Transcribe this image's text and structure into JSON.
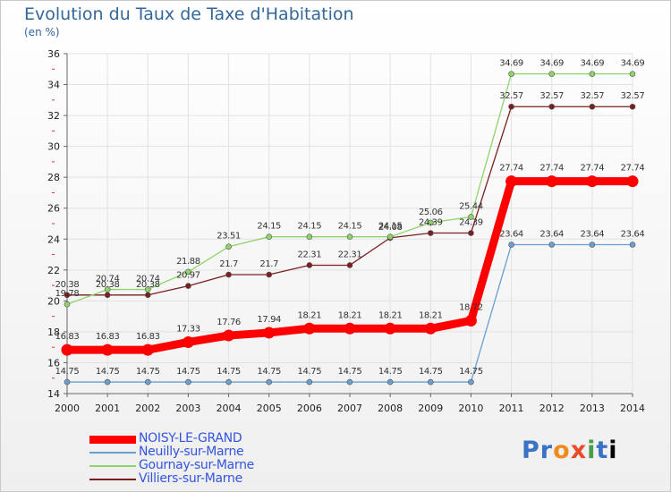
{
  "header": {
    "title": "Evolution du Taux de Taxe d'Habitation",
    "subtitle": "(en %)"
  },
  "logo": {
    "text": "Proxiti"
  },
  "chart_data": {
    "type": "line",
    "title": "Evolution du Taux de Taxe d'Habitation",
    "ylabel": "(en %)",
    "xlabel": "",
    "ylim": [
      14,
      36
    ],
    "ytick_step": 2,
    "grid": true,
    "legend_position": "bottom-left",
    "x": [
      "2000",
      "2001",
      "2002",
      "2003",
      "2004",
      "2005",
      "2006",
      "2007",
      "2008",
      "2009",
      "2010",
      "2011",
      "2012",
      "2013",
      "2014"
    ],
    "series": [
      {
        "name": "NOISY-LE-GRAND",
        "color": "#ff0000",
        "values": [
          16.83,
          16.83,
          16.83,
          17.33,
          17.76,
          17.94,
          18.21,
          18.21,
          18.21,
          18.21,
          18.72,
          27.74,
          27.74,
          27.74,
          27.74
        ],
        "labels": [
          "16.83",
          "16.83",
          "16.83",
          "17.33",
          "17.76",
          "17.94",
          "18.21",
          "18.21",
          "18.21",
          "18.21",
          "18.72",
          "27.74",
          "27.74",
          "27.74",
          "27.74"
        ]
      },
      {
        "name": "Neuilly-sur-Marne",
        "color": "#6a9fcf",
        "values": [
          14.75,
          14.75,
          14.75,
          14.75,
          14.75,
          14.75,
          14.75,
          14.75,
          14.75,
          14.75,
          14.75,
          23.64,
          23.64,
          23.64,
          23.64
        ],
        "labels": [
          "14.75",
          "14.75",
          "14.75",
          "14.75",
          "14.75",
          "14.75",
          "14.75",
          "14.75",
          "14.75",
          "14.75",
          "14.75",
          "23.64",
          "23.64",
          "23.64",
          "23.64"
        ]
      },
      {
        "name": "Gournay-sur-Marne",
        "color": "#8fd46a",
        "values": [
          19.78,
          20.74,
          20.74,
          21.88,
          23.51,
          24.15,
          24.15,
          24.15,
          24.15,
          25.06,
          25.44,
          34.69,
          34.69,
          34.69,
          34.69
        ],
        "labels": [
          "19.78",
          "20.74",
          "20.74",
          "21.88",
          "23.51",
          "24.15",
          "24.15",
          "24.15",
          "24.15",
          "25.06",
          "25.44",
          "34.69",
          "34.69",
          "34.69",
          "34.69"
        ]
      },
      {
        "name": "Villiers-sur-Marne",
        "color": "#7a2020",
        "values": [
          20.38,
          20.38,
          20.38,
          20.97,
          21.7,
          21.7,
          22.31,
          22.31,
          24.08,
          24.39,
          24.39,
          32.57,
          32.57,
          32.57,
          32.57
        ],
        "labels": [
          "20.38",
          "20.38",
          "20.38",
          "20.97",
          "21.7",
          "21.7",
          "22.31",
          "22.31",
          "24.08",
          "24.39",
          "24.39",
          "32.57",
          "32.57",
          "32.57",
          "32.57"
        ]
      }
    ]
  }
}
